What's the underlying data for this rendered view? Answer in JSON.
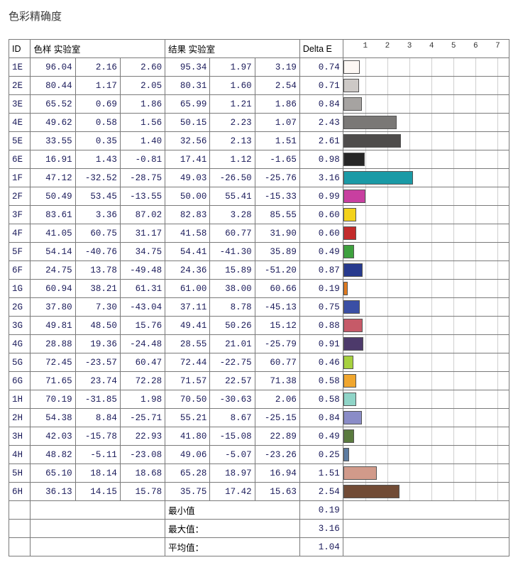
{
  "title": "色彩精确度",
  "columns": {
    "id": "ID",
    "sample_lab": "色样 实验室",
    "result_lab": "结果 实验室",
    "delta": "Delta E"
  },
  "chart": {
    "x_max": 7.5,
    "ticks": [
      1,
      2,
      3,
      4,
      5,
      6,
      7
    ],
    "gridline_color": "#cfcfcf",
    "tick_fontsize": 11
  },
  "rows": [
    {
      "id": "1E",
      "s": [
        96.04,
        2.16,
        2.6
      ],
      "r": [
        95.34,
        1.97,
        3.19
      ],
      "delta": 0.74,
      "color": "#fdf8f4"
    },
    {
      "id": "2E",
      "s": [
        80.44,
        1.17,
        2.05
      ],
      "r": [
        80.31,
        1.6,
        2.54
      ],
      "delta": 0.71,
      "color": "#cdc9c6"
    },
    {
      "id": "3E",
      "s": [
        65.52,
        0.69,
        1.86
      ],
      "r": [
        65.99,
        1.21,
        1.86
      ],
      "delta": 0.84,
      "color": "#a6a3a1"
    },
    {
      "id": "4E",
      "s": [
        49.62,
        0.58,
        1.56
      ],
      "r": [
        50.15,
        2.23,
        1.07
      ],
      "delta": 2.43,
      "color": "#7a7876"
    },
    {
      "id": "5E",
      "s": [
        33.55,
        0.35,
        1.4
      ],
      "r": [
        32.56,
        2.13,
        1.51
      ],
      "delta": 2.61,
      "color": "#4e4c4b"
    },
    {
      "id": "6E",
      "s": [
        16.91,
        1.43,
        -0.81
      ],
      "r": [
        17.41,
        1.12,
        -1.65
      ],
      "delta": 0.98,
      "color": "#262626"
    },
    {
      "id": "1F",
      "s": [
        47.12,
        -32.52,
        -28.75
      ],
      "r": [
        49.03,
        -26.5,
        -25.76
      ],
      "delta": 3.16,
      "color": "#1a9aa6"
    },
    {
      "id": "2F",
      "s": [
        50.49,
        53.45,
        -13.55
      ],
      "r": [
        50.0,
        55.41,
        -15.33
      ],
      "delta": 0.99,
      "color": "#c83fa0"
    },
    {
      "id": "3F",
      "s": [
        83.61,
        3.36,
        87.02
      ],
      "r": [
        82.83,
        3.28,
        85.55
      ],
      "delta": 0.6,
      "color": "#f3d21b"
    },
    {
      "id": "4F",
      "s": [
        41.05,
        60.75,
        31.17
      ],
      "r": [
        41.58,
        60.77,
        31.9
      ],
      "delta": 0.6,
      "color": "#c32b2b"
    },
    {
      "id": "5F",
      "s": [
        54.14,
        -40.76,
        34.75
      ],
      "r": [
        54.41,
        -41.3,
        35.89
      ],
      "delta": 0.49,
      "color": "#3ea13e"
    },
    {
      "id": "6F",
      "s": [
        24.75,
        13.78,
        -49.48
      ],
      "r": [
        24.36,
        15.89,
        -51.2
      ],
      "delta": 0.87,
      "color": "#273a8e"
    },
    {
      "id": "1G",
      "s": [
        60.94,
        38.21,
        61.31
      ],
      "r": [
        61.0,
        38.0,
        60.66
      ],
      "delta": 0.19,
      "color": "#e07a1f"
    },
    {
      "id": "2G",
      "s": [
        37.8,
        7.3,
        -43.04
      ],
      "r": [
        37.11,
        8.78,
        -45.13
      ],
      "delta": 0.75,
      "color": "#3a4fa5"
    },
    {
      "id": "3G",
      "s": [
        49.81,
        48.5,
        15.76
      ],
      "r": [
        49.41,
        50.26,
        15.12
      ],
      "delta": 0.88,
      "color": "#c65a68"
    },
    {
      "id": "4G",
      "s": [
        28.88,
        19.36,
        -24.48
      ],
      "r": [
        28.55,
        21.01,
        -25.79
      ],
      "delta": 0.91,
      "color": "#4d3a6b"
    },
    {
      "id": "5G",
      "s": [
        72.45,
        -23.57,
        60.47
      ],
      "r": [
        72.44,
        -22.75,
        60.77
      ],
      "delta": 0.46,
      "color": "#a7d13e"
    },
    {
      "id": "6G",
      "s": [
        71.65,
        23.74,
        72.28
      ],
      "r": [
        71.57,
        22.57,
        71.38
      ],
      "delta": 0.58,
      "color": "#f0a62e"
    },
    {
      "id": "1H",
      "s": [
        70.19,
        -31.85,
        1.98
      ],
      "r": [
        70.5,
        -30.63,
        2.06
      ],
      "delta": 0.58,
      "color": "#8fd4c7"
    },
    {
      "id": "2H",
      "s": [
        54.38,
        8.84,
        -25.71
      ],
      "r": [
        55.21,
        8.67,
        -25.15
      ],
      "delta": 0.84,
      "color": "#8a8cc7"
    },
    {
      "id": "3H",
      "s": [
        42.03,
        -15.78,
        22.93
      ],
      "r": [
        41.8,
        -15.08,
        22.89
      ],
      "delta": 0.49,
      "color": "#5a7a3e"
    },
    {
      "id": "4H",
      "s": [
        48.82,
        -5.11,
        -23.08
      ],
      "r": [
        49.06,
        -5.07,
        -23.26
      ],
      "delta": 0.25,
      "color": "#5c7ba0"
    },
    {
      "id": "5H",
      "s": [
        65.1,
        18.14,
        18.68
      ],
      "r": [
        65.28,
        18.97,
        16.94
      ],
      "delta": 1.51,
      "color": "#d19a8a"
    },
    {
      "id": "6H",
      "s": [
        36.13,
        14.15,
        15.78
      ],
      "r": [
        35.75,
        17.42,
        15.63
      ],
      "delta": 2.54,
      "color": "#714b35"
    }
  ],
  "summary": [
    {
      "label": "最小值",
      "value": 0.19
    },
    {
      "label": "最大值：",
      "value": 3.16
    },
    {
      "label": "平均值：",
      "value": 1.04
    }
  ]
}
